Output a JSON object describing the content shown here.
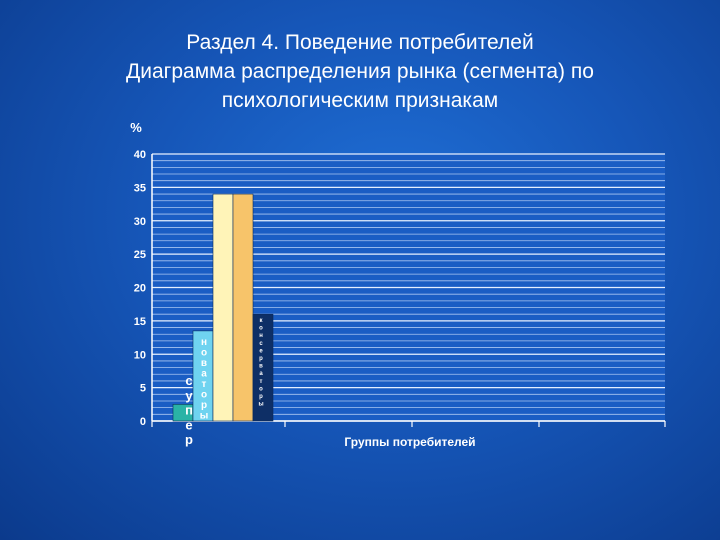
{
  "slide": {
    "title_lines": [
      "Раздел 4. Поведение потребителей",
      "Диаграмма распределения рынка (сегмента) по",
      "психологическим признакам"
    ]
  },
  "chart_data": {
    "type": "bar",
    "ylabel": "%",
    "xlabel": "Группы потребителей",
    "ylim": [
      0,
      40
    ],
    "yticks": [
      0,
      5,
      10,
      15,
      20,
      25,
      30,
      35,
      40
    ],
    "grid": true,
    "series": [
      {
        "name": "супер",
        "value": 2.5,
        "color": "#2ab3a6"
      },
      {
        "name": "новаторы",
        "value": 13.5,
        "color": "#6fd3f0"
      },
      {
        "name": "",
        "value": 34,
        "color": "#fff4b8"
      },
      {
        "name": "",
        "value": 34,
        "color": "#f7c46a"
      },
      {
        "name": "консерваторы",
        "value": 16,
        "color": "#0e2f66"
      }
    ]
  }
}
